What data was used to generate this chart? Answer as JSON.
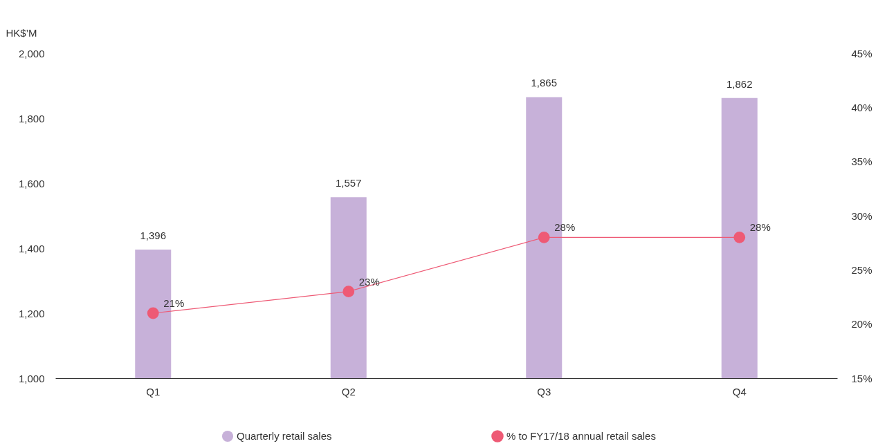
{
  "chart_data": {
    "type": "bar",
    "ylabel": "HK$’M",
    "categories": [
      "Q1",
      "Q2",
      "Q3",
      "Q4"
    ],
    "ylim": [
      1000,
      2000
    ],
    "yticks": [
      {
        "value": 1000,
        "label": "1,000"
      },
      {
        "value": 1200,
        "label": "1,200"
      },
      {
        "value": 1400,
        "label": "1,400"
      },
      {
        "value": 1600,
        "label": "1,600"
      },
      {
        "value": 1800,
        "label": "1,800"
      },
      {
        "value": 2000,
        "label": "2,000"
      }
    ],
    "y2lim": [
      15,
      45
    ],
    "y2ticks": [
      {
        "value": 15,
        "label": "15%"
      },
      {
        "value": 20,
        "label": "20%"
      },
      {
        "value": 25,
        "label": "25%"
      },
      {
        "value": 30,
        "label": "30%"
      },
      {
        "value": 35,
        "label": "35%"
      },
      {
        "value": 40,
        "label": "40%"
      },
      {
        "value": 45,
        "label": "45%"
      }
    ],
    "series": [
      {
        "name": "Quarterly retail sales",
        "color": "#c7b1d9",
        "values": [
          1396,
          1557,
          1865,
          1862
        ],
        "value_labels": [
          "1,396",
          "1,557",
          "1,865",
          "1,862"
        ]
      },
      {
        "name": "% to FY17/18 annual retail sales",
        "type": "line",
        "axis": "y2",
        "color": "#ee5a75",
        "values": [
          21,
          23,
          28,
          28
        ],
        "value_labels": [
          "21%",
          "23%",
          "28%",
          "28%"
        ]
      }
    ],
    "marker": "circle",
    "legend": "bottom"
  }
}
